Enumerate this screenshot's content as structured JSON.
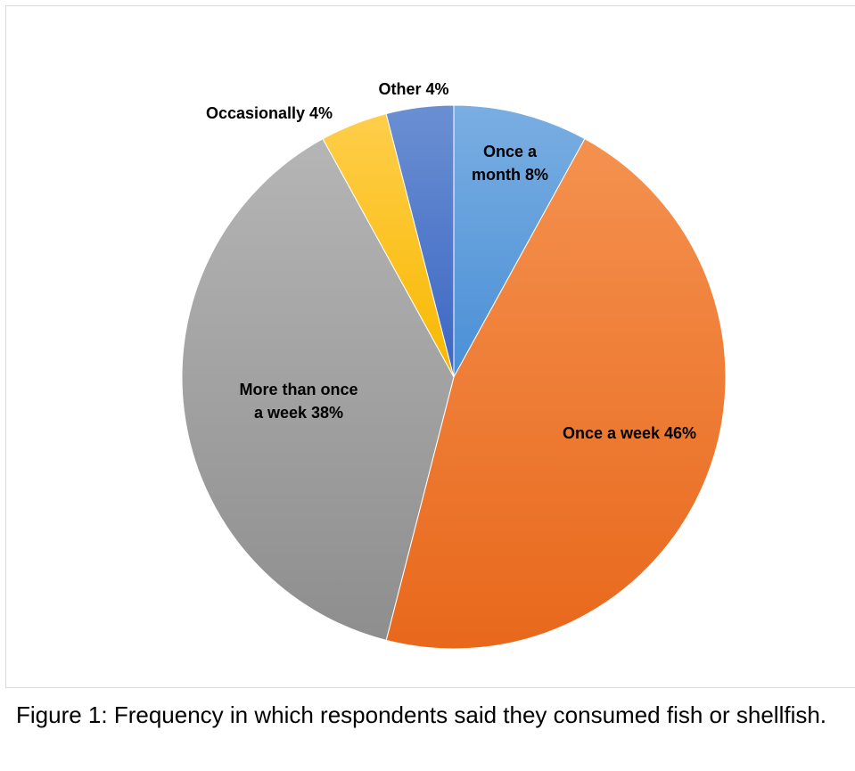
{
  "chart_data": {
    "type": "pie",
    "title": "",
    "legend": "none",
    "slices": [
      {
        "label_lines": [
          "Once a",
          "month 8%"
        ],
        "value": 8,
        "color_light": "#7aaee2",
        "color_dark": "#4a8fd6"
      },
      {
        "label_lines": [
          "Once a week 46%"
        ],
        "value": 46,
        "color_light": "#f4914f",
        "color_dark": "#e8681c"
      },
      {
        "label_lines": [
          "More than once",
          "a week 38%"
        ],
        "value": 38,
        "color_light": "#b5b5b5",
        "color_dark": "#8e8e8e"
      },
      {
        "label_lines": [
          "Occasionally 4%"
        ],
        "value": 4,
        "color_light": "#ffce4a",
        "color_dark": "#f8b800"
      },
      {
        "label_lines": [
          "Other  4%"
        ],
        "value": 4,
        "color_light": "#6a8fd2",
        "color_dark": "#3c66c4"
      }
    ]
  },
  "caption": {
    "text": "Figure 1: Frequency in which respondents said they consumed fish or shellfish."
  }
}
